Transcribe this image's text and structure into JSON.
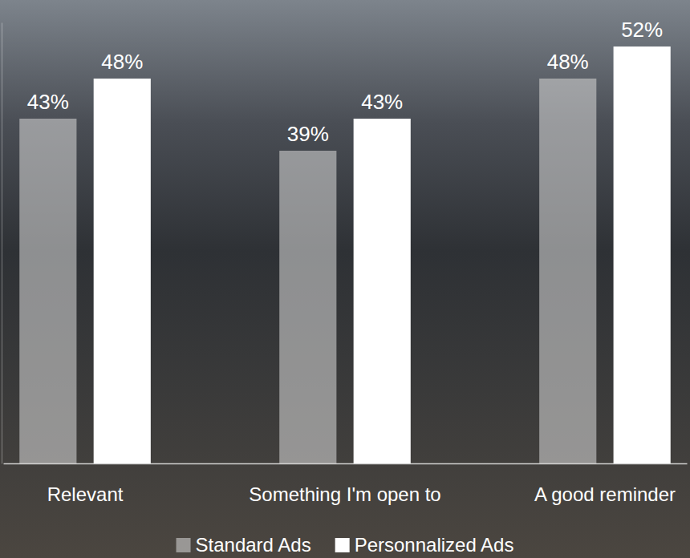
{
  "chart_data": {
    "type": "bar",
    "categories": [
      "Relevant",
      "Something I'm open to",
      "A good reminder"
    ],
    "series": [
      {
        "name": "Standard Ads",
        "color": "#cfcfcf",
        "values": [
          43,
          39,
          48
        ],
        "value_labels": [
          "43%",
          "39%",
          "48%"
        ]
      },
      {
        "name": "Personnalized Ads",
        "color": "#ffffff",
        "values": [
          48,
          43,
          52
        ],
        "value_labels": [
          "48%",
          "43%",
          "52%"
        ]
      }
    ],
    "ylim": [
      0,
      55
    ],
    "yticks": [],
    "grid": false,
    "data_labels": true,
    "tick_labels": "x",
    "legend": "bottom"
  }
}
